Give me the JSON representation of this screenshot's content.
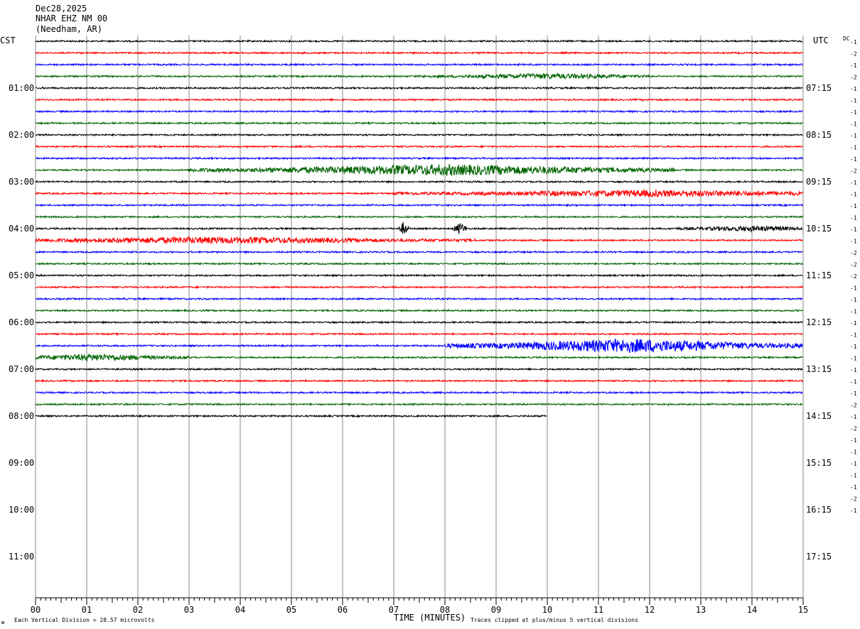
{
  "header": {
    "date": "Dec28,2025",
    "station": "NHAR EHZ NM 00",
    "location": "(Needham, AR)"
  },
  "chart_data": {
    "type": "line",
    "title": "",
    "left_axis_label": "CST",
    "right_axis_label": "UTC",
    "dc_label": "DC",
    "xlabel": "TIME (MINUTES)",
    "xlim": [
      0,
      15
    ],
    "x_ticks": [
      "00",
      "01",
      "02",
      "03",
      "04",
      "05",
      "06",
      "07",
      "08",
      "09",
      "10",
      "11",
      "12",
      "13",
      "14",
      "15"
    ],
    "row_colors": [
      "#000000",
      "#ff0000",
      "#0000ff",
      "#006400"
    ],
    "rows_total": 48,
    "rows_per_hour": 4,
    "minutes_per_row": 15,
    "left_hour_labels": [
      "01:00",
      "02:00",
      "03:00",
      "04:00",
      "05:00",
      "06:00",
      "07:00",
      "08:00",
      "09:00",
      "10:00",
      "11:00"
    ],
    "right_hour_labels": [
      "07:15",
      "08:15",
      "09:15",
      "10:15",
      "11:15",
      "12:15",
      "13:15",
      "14:15",
      "15:15",
      "16:15",
      "17:15"
    ],
    "hour_label_first_row": 4,
    "dc_offsets": [
      "-1",
      "-2",
      "-1",
      "-2",
      "-1",
      "-1",
      "-1",
      "-1",
      "-1",
      "-1",
      "-1",
      "-2",
      "-1",
      "-1",
      "-1",
      "-1",
      "-1",
      "-1",
      "-2",
      "-2",
      "-2",
      "-1",
      "-1",
      "-1",
      "-1",
      "-1",
      "-1",
      "-1",
      "-1",
      "-1",
      "-1",
      "-2",
      "-1",
      "-2",
      "-1",
      "-1",
      "-1",
      "-1",
      "-1",
      "-2",
      "-1"
    ],
    "trace_end_minute_last_row": 10,
    "bursts": [
      {
        "row": 3,
        "start": 7.5,
        "end": 12.0,
        "peak": 10.0,
        "amp": 3
      },
      {
        "row": 11,
        "start": 3.0,
        "end": 12.5,
        "peak": 8.0,
        "amp": 7
      },
      {
        "row": 13,
        "start": 7.0,
        "end": 15.0,
        "peak": 12.0,
        "amp": 4
      },
      {
        "row": 16,
        "start": 7.1,
        "end": 7.3,
        "peak": 7.2,
        "amp": 10
      },
      {
        "row": 16,
        "start": 8.15,
        "end": 8.45,
        "peak": 8.3,
        "amp": 8
      },
      {
        "row": 16,
        "start": 12.5,
        "end": 15.0,
        "peak": 14.0,
        "amp": 3
      },
      {
        "row": 17,
        "start": 0.0,
        "end": 8.6,
        "peak": 3.5,
        "amp": 4
      },
      {
        "row": 26,
        "start": 8.0,
        "end": 15.0,
        "peak": 11.6,
        "amp": 9
      },
      {
        "row": 27,
        "start": 0.0,
        "end": 3.0,
        "peak": 1.2,
        "amp": 4
      }
    ],
    "footer_left": "Each Vertical Division =   28.57 microvolts",
    "footer_right": "Traces clipped at plus/minus 5 vertical divisions"
  }
}
